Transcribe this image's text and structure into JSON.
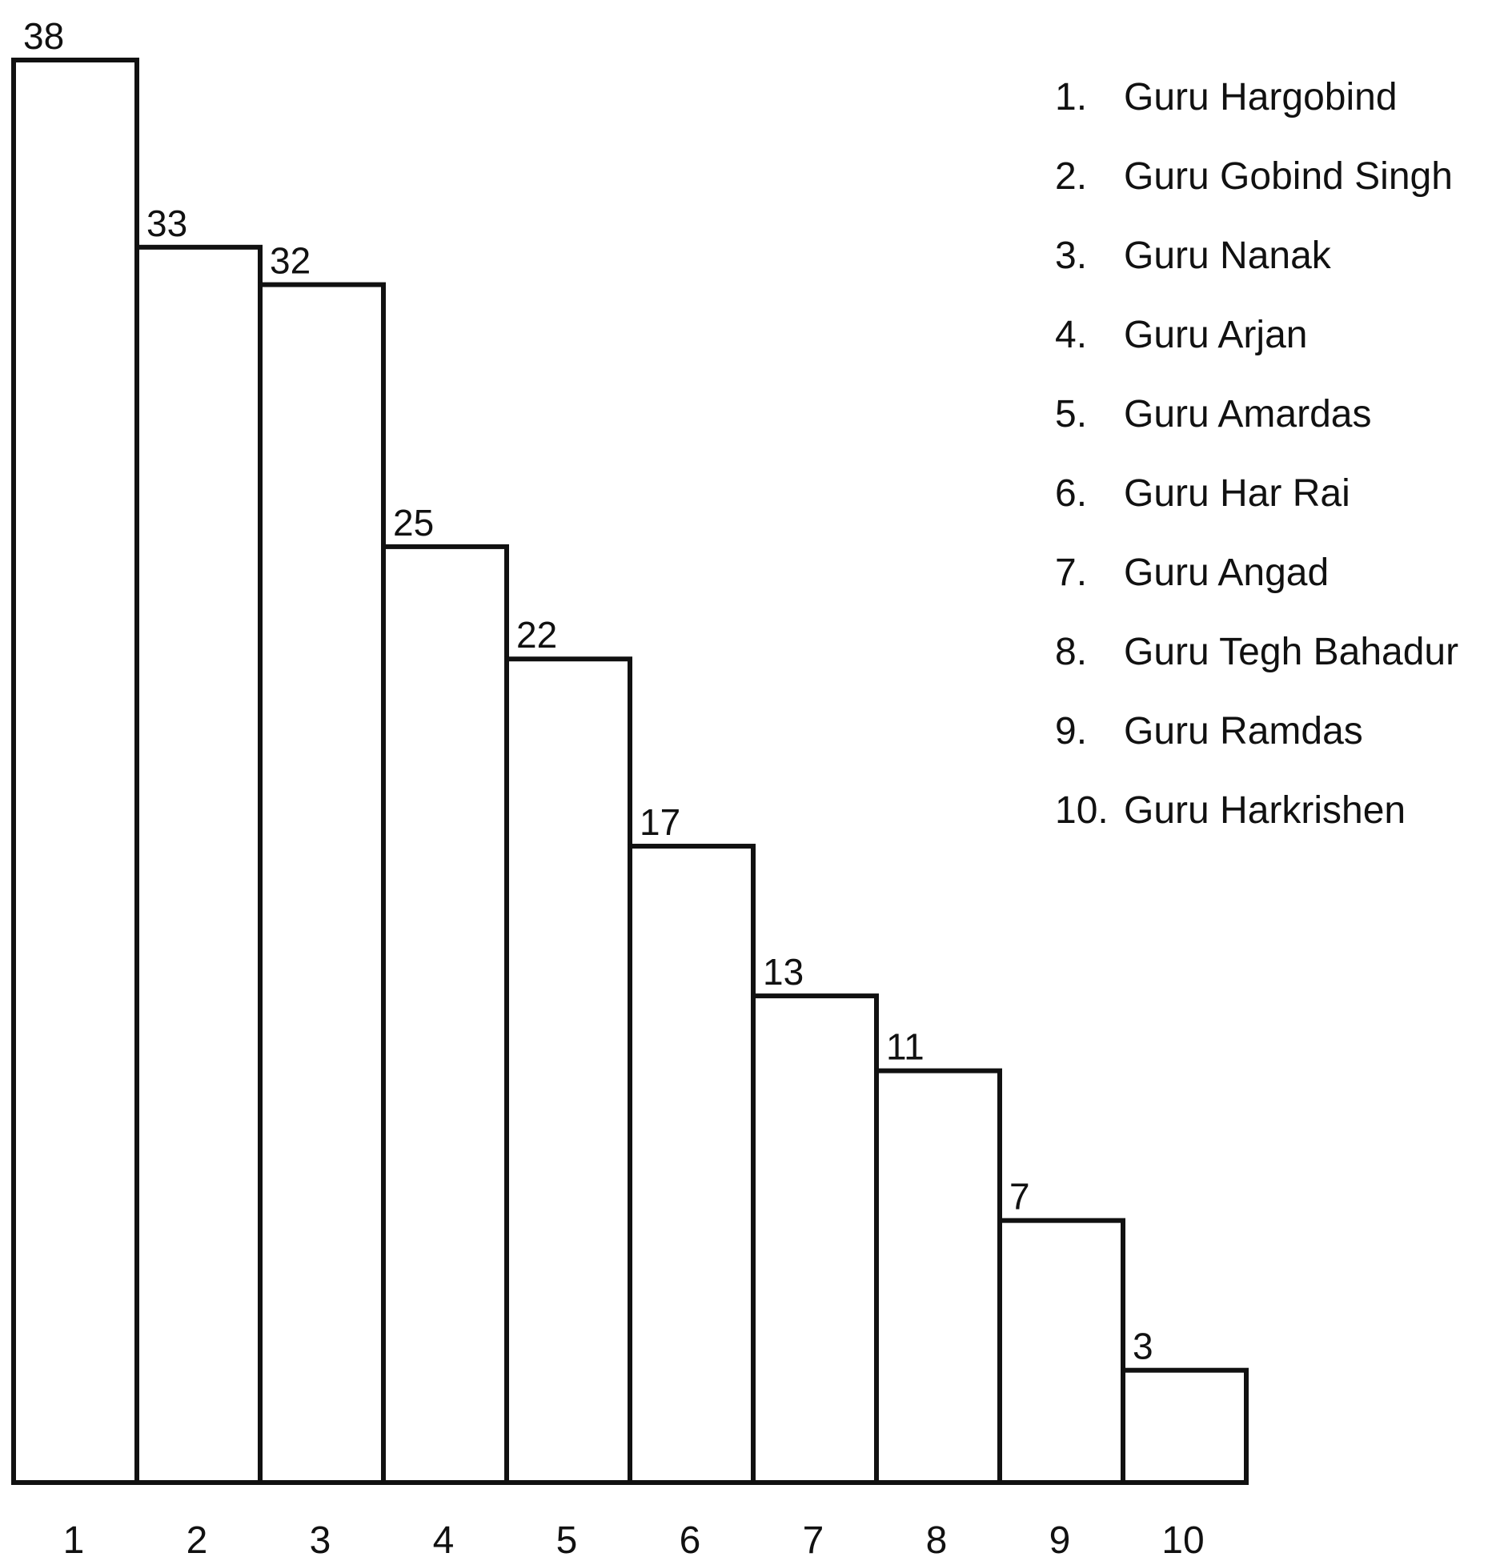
{
  "chart_data": {
    "type": "bar",
    "categories": [
      "1",
      "2",
      "3",
      "4",
      "5",
      "6",
      "7",
      "8",
      "9",
      "10"
    ],
    "values": [
      38,
      33,
      32,
      25,
      22,
      17,
      13,
      11,
      7,
      3
    ],
    "data_labels": [
      "38",
      "33",
      "32",
      "25",
      "22",
      "17",
      "13",
      "11",
      "7",
      "3"
    ],
    "title": "",
    "xlabel": "",
    "ylabel": "",
    "ylim": [
      0,
      38
    ],
    "grid": false,
    "legend_position": "top-right",
    "bar_fill": "#ffffff",
    "bar_stroke": "#111111"
  },
  "legend": {
    "items": [
      {
        "number": "1.",
        "name": "Guru Hargobind"
      },
      {
        "number": "2.",
        "name": "Guru Gobind Singh"
      },
      {
        "number": "3.",
        "name": "Guru Nanak"
      },
      {
        "number": "4.",
        "name": "Guru Arjan"
      },
      {
        "number": "5.",
        "name": "Guru Amardas"
      },
      {
        "number": "6.",
        "name": "Guru Har Rai"
      },
      {
        "number": "7.",
        "name": "Guru Angad"
      },
      {
        "number": "8.",
        "name": "Guru Tegh Bahadur"
      },
      {
        "number": "9.",
        "name": "Guru Ramdas"
      },
      {
        "number": "10.",
        "name": "Guru Harkrishen"
      }
    ]
  }
}
